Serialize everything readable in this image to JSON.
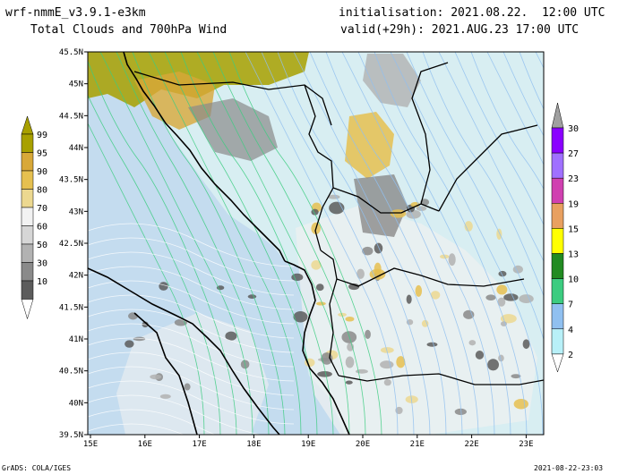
{
  "header": {
    "model": "wrf-nmmE_v3.9.1-e3km",
    "subtitle": "Total Clouds and 700hPa Wind",
    "init": "initialisation: 2021.08.22.  12:00 UTC",
    "valid": "valid(+29h): 2021.AUG.23 17:00 UTC"
  },
  "map": {
    "lon_range": [
      15,
      23.25
    ],
    "lat_range": [
      39.5,
      45.5
    ],
    "lon_ticks": [
      "15E",
      "16E",
      "17E",
      "18E",
      "19E",
      "20E",
      "21E",
      "22E",
      "23E"
    ],
    "lat_ticks": [
      "45.5N",
      "45N",
      "44.5N",
      "44N",
      "43.5N",
      "43N",
      "42.5N",
      "42N",
      "41.5N",
      "41N",
      "40.5N",
      "40N",
      "39.5N"
    ],
    "background_color": "#d8eef2",
    "sea_color": "#c4dcef",
    "coast_color": "#000000"
  },
  "cloud_colorbar": {
    "labels": [
      "99",
      "95",
      "90",
      "80",
      "70",
      "60",
      "50",
      "30",
      "10"
    ],
    "colors": [
      "#a8a000",
      "#d8a838",
      "#e6c050",
      "#ecd890",
      "#f2f2f2",
      "#d6d6d6",
      "#b2b2b2",
      "#8a8a8a",
      "#5c5c5c"
    ]
  },
  "wind_colorbar": {
    "labels": [
      "30",
      "27",
      "23",
      "19",
      "15",
      "13",
      "10",
      "7",
      "4",
      "2"
    ],
    "colors": [
      "#8a00ff",
      "#a070ff",
      "#d040b0",
      "#e8a060",
      "#ffff00",
      "#228b22",
      "#3ccc80",
      "#90c0f0",
      "#b8f0f8"
    ]
  },
  "footer": {
    "left": "GrADS: COLA/IGES",
    "right": "2021-08-22-23:03"
  }
}
